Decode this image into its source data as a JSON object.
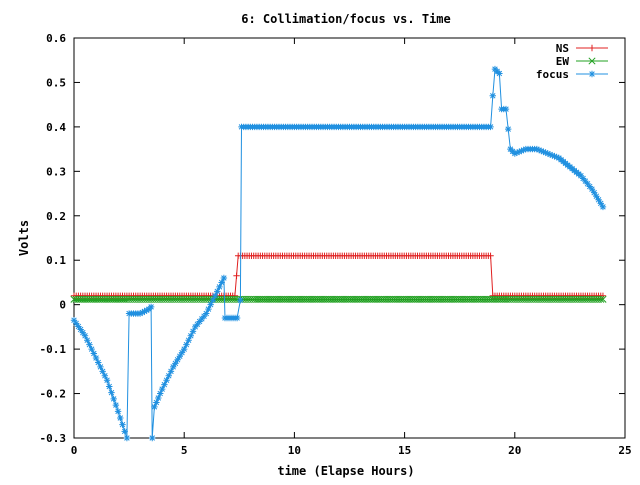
{
  "chart_data": {
    "type": "line",
    "title": "6: Collimation/focus vs. Time",
    "xlabel": "time (Elapse Hours)",
    "ylabel": "Volts",
    "xlim": [
      0,
      25
    ],
    "ylim": [
      -0.3,
      0.6
    ],
    "xticks": [
      0,
      5,
      10,
      15,
      20,
      25
    ],
    "xtick_labels": [
      "0",
      "5",
      "10",
      "15",
      "20",
      "25"
    ],
    "yticks": [
      -0.3,
      -0.2,
      -0.1,
      0,
      0.1,
      0.2,
      0.3,
      0.4,
      0.5,
      0.6
    ],
    "ytick_labels": [
      "-0.3",
      "-0.2",
      "-0.1",
      "0",
      "0.1",
      "0.2",
      "0.3",
      "0.4",
      "0.5",
      "0.6"
    ],
    "grid": false,
    "legend_position": "top-right",
    "series": [
      {
        "name": "NS",
        "color": "#e02020",
        "marker": "plus",
        "points": [
          [
            0,
            0.02
          ],
          [
            7.3,
            0.02
          ],
          [
            7.45,
            0.11
          ],
          [
            18.9,
            0.11
          ],
          [
            19.0,
            0.02
          ],
          [
            24.0,
            0.02
          ]
        ]
      },
      {
        "name": "EW",
        "color": "#20a020",
        "marker": "cross",
        "points": [
          [
            0,
            0.012
          ],
          [
            24.0,
            0.012
          ]
        ]
      },
      {
        "name": "focus",
        "color": "#2090e0",
        "marker": "star",
        "points": [
          [
            0,
            -0.035
          ],
          [
            0.5,
            -0.07
          ],
          [
            1.0,
            -0.12
          ],
          [
            1.5,
            -0.17
          ],
          [
            2.0,
            -0.24
          ],
          [
            2.4,
            -0.3
          ],
          [
            2.5,
            -0.02
          ],
          [
            3.0,
            -0.02
          ],
          [
            3.4,
            -0.01
          ],
          [
            3.5,
            -0.005
          ],
          [
            3.55,
            -0.3
          ],
          [
            3.65,
            -0.23
          ],
          [
            4.0,
            -0.19
          ],
          [
            4.5,
            -0.14
          ],
          [
            5.0,
            -0.1
          ],
          [
            5.5,
            -0.05
          ],
          [
            6.0,
            -0.02
          ],
          [
            6.5,
            0.03
          ],
          [
            6.8,
            0.06
          ],
          [
            6.85,
            -0.03
          ],
          [
            7.4,
            -0.03
          ],
          [
            7.55,
            0.01
          ],
          [
            7.6,
            0.4
          ],
          [
            10.0,
            0.4
          ],
          [
            15.0,
            0.4
          ],
          [
            18.9,
            0.4
          ],
          [
            19.0,
            0.47
          ],
          [
            19.1,
            0.53
          ],
          [
            19.3,
            0.52
          ],
          [
            19.4,
            0.44
          ],
          [
            19.6,
            0.44
          ],
          [
            19.8,
            0.35
          ],
          [
            20.0,
            0.34
          ],
          [
            20.5,
            0.35
          ],
          [
            21.0,
            0.35
          ],
          [
            21.5,
            0.34
          ],
          [
            22.0,
            0.33
          ],
          [
            22.5,
            0.31
          ],
          [
            23.0,
            0.29
          ],
          [
            23.5,
            0.26
          ],
          [
            24.0,
            0.22
          ]
        ]
      }
    ]
  }
}
